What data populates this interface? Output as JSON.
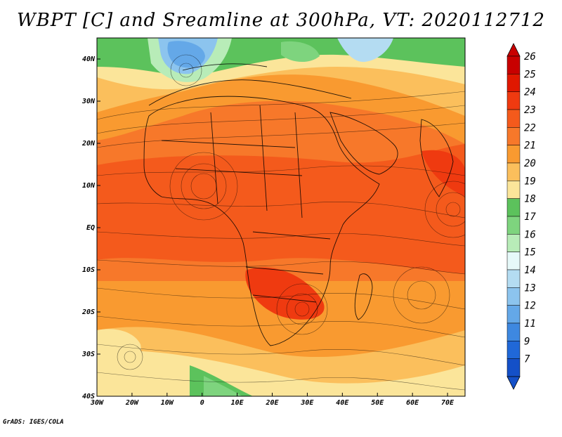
{
  "title": "WBPT [C] and Sreamline at 300hPa, VT: 2020112712",
  "credit": "GrADS: IGES/COLA",
  "map": {
    "lon_ticks": [
      "30W",
      "20W",
      "10W",
      "0",
      "10E",
      "20E",
      "30E",
      "40E",
      "50E",
      "60E",
      "70E"
    ],
    "lat_ticks": [
      "40N",
      "30N",
      "20N",
      "10N",
      "EQ",
      "10S",
      "20S",
      "30S",
      "40S"
    ],
    "lon_range": [
      -30,
      75
    ],
    "lat_range": [
      -40,
      45
    ]
  },
  "colorbar": {
    "labels": [
      "26",
      "25",
      "24",
      "23",
      "22",
      "21",
      "20",
      "19",
      "18",
      "17",
      "16",
      "15",
      "14",
      "13",
      "12",
      "11",
      "9",
      "7"
    ],
    "colors": [
      "#c80000",
      "#e01800",
      "#ef3a10",
      "#f45a1c",
      "#f7782a",
      "#f99a30",
      "#fbbf5c",
      "#fbe59a",
      "#5cc25c",
      "#7ed47e",
      "#b8ecb8",
      "#e6f9f9",
      "#b4dcf2",
      "#8cc4ee",
      "#64a8e8",
      "#3e88e0",
      "#2068d8",
      "#1450c8"
    ]
  }
}
